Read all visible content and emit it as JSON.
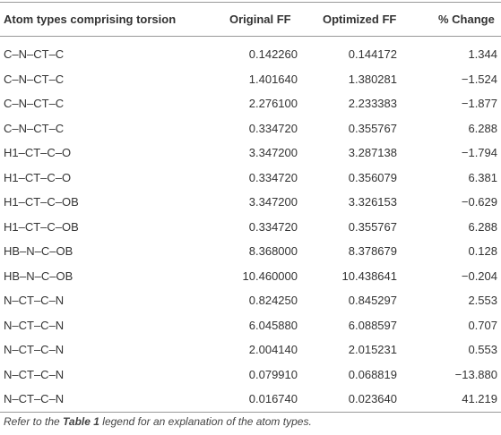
{
  "table": {
    "header": [
      "Atom types comprising torsion",
      "Original FF",
      "Optimized FF",
      "% Change"
    ],
    "rows": [
      [
        "C–N–CT–C",
        "0.142260",
        "0.144172",
        "1.344"
      ],
      [
        "C–N–CT–C",
        "1.401640",
        "1.380281",
        "−1.524"
      ],
      [
        "C–N–CT–C",
        "2.276100",
        "2.233383",
        "−1.877"
      ],
      [
        "C–N–CT–C",
        "0.334720",
        "0.355767",
        "6.288"
      ],
      [
        "H1–CT–C–O",
        "3.347200",
        "3.287138",
        "−1.794"
      ],
      [
        "H1–CT–C–O",
        "0.334720",
        "0.356079",
        "6.381"
      ],
      [
        "H1–CT–C–OB",
        "3.347200",
        "3.326153",
        "−0.629"
      ],
      [
        "H1–CT–C–OB",
        "0.334720",
        "0.355767",
        "6.288"
      ],
      [
        "HB–N–C–OB",
        "8.368000",
        "8.378679",
        "0.128"
      ],
      [
        "HB–N–C–OB",
        "10.460000",
        "10.438641",
        "−0.204"
      ],
      [
        "N–CT–C–N",
        "0.824250",
        "0.845297",
        "2.553"
      ],
      [
        "N–CT–C–N",
        "6.045880",
        "6.088597",
        "0.707"
      ],
      [
        "N–CT–C–N",
        "2.004140",
        "2.015231",
        "0.553"
      ],
      [
        "N–CT–C–N",
        "0.079910",
        "0.068819",
        "−13.880"
      ],
      [
        "N–CT–C–N",
        "0.016740",
        "0.023640",
        "41.219"
      ]
    ]
  },
  "footnote": {
    "before": "Refer to the ",
    "emphasis": "Table 1",
    "after": " legend for an explanation of the atom types."
  }
}
